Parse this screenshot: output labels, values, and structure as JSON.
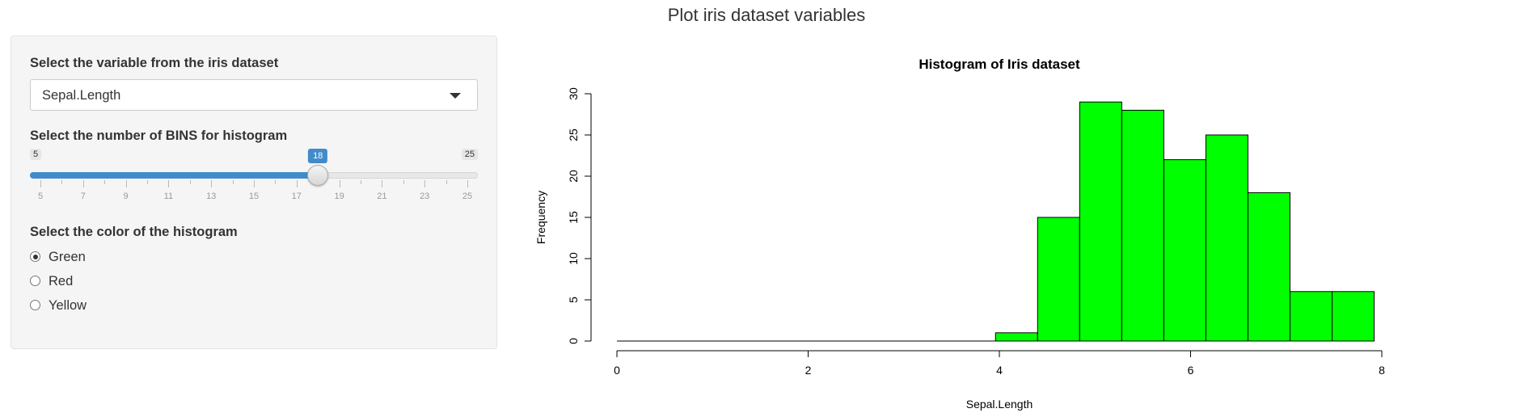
{
  "page": {
    "title": "Plot iris dataset variables"
  },
  "sidebar": {
    "variable": {
      "label": "Select the variable from the iris dataset",
      "selected": "Sepal.Length"
    },
    "bins": {
      "label": "Select the number of BINS for histogram",
      "min": 5,
      "max": 25,
      "value": 18,
      "min_label": "5",
      "max_label": "25",
      "value_label": "18",
      "ticks": [
        "5",
        "7",
        "9",
        "11",
        "13",
        "15",
        "17",
        "19",
        "21",
        "23",
        "25"
      ]
    },
    "color": {
      "label": "Select the color of the histogram",
      "options": [
        "Green",
        "Red",
        "Yellow"
      ],
      "selected": "Green"
    }
  },
  "chart_data": {
    "type": "bar",
    "title": "Histogram of Iris dataset",
    "xlabel": "Sepal.Length",
    "ylabel": "Frequency",
    "xlim": [
      0,
      8
    ],
    "ylim": [
      0,
      30
    ],
    "x_ticks": [
      "0",
      "2",
      "4",
      "6",
      "8"
    ],
    "y_ticks": [
      "0",
      "5",
      "10",
      "15",
      "20",
      "25",
      "30"
    ],
    "bar_color": "#00ff00",
    "bins": [
      {
        "start": 0.0,
        "end": 0.44,
        "count": 0
      },
      {
        "start": 0.44,
        "end": 0.88,
        "count": 0
      },
      {
        "start": 0.88,
        "end": 1.32,
        "count": 0
      },
      {
        "start": 1.32,
        "end": 1.76,
        "count": 0
      },
      {
        "start": 1.76,
        "end": 2.2,
        "count": 0
      },
      {
        "start": 2.2,
        "end": 2.64,
        "count": 0
      },
      {
        "start": 2.64,
        "end": 3.08,
        "count": 0
      },
      {
        "start": 3.08,
        "end": 3.52,
        "count": 0
      },
      {
        "start": 3.52,
        "end": 3.96,
        "count": 0
      },
      {
        "start": 3.96,
        "end": 4.4,
        "count": 1
      },
      {
        "start": 4.4,
        "end": 4.84,
        "count": 15
      },
      {
        "start": 4.84,
        "end": 5.28,
        "count": 29
      },
      {
        "start": 5.28,
        "end": 5.72,
        "count": 28
      },
      {
        "start": 5.72,
        "end": 6.16,
        "count": 22
      },
      {
        "start": 6.16,
        "end": 6.6,
        "count": 25
      },
      {
        "start": 6.6,
        "end": 7.04,
        "count": 18
      },
      {
        "start": 7.04,
        "end": 7.48,
        "count": 6
      },
      {
        "start": 7.48,
        "end": 7.92,
        "count": 6
      }
    ]
  }
}
